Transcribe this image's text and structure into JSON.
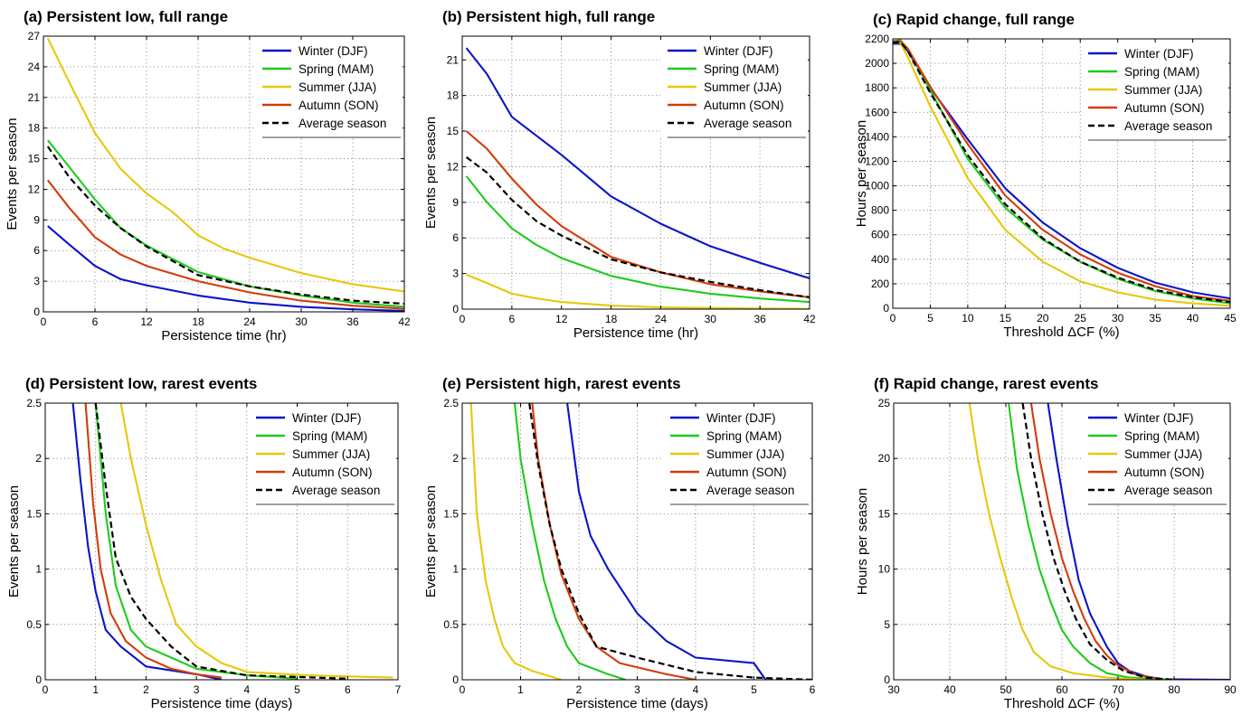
{
  "figure": {
    "colors": {
      "Winter (DJF)": "#0a14c8",
      "Spring (MAM)": "#1ecb1e",
      "Summer (JJA)": "#e6c80a",
      "Autumn (SON)": "#d23c0a",
      "Average season": "#000000"
    }
  },
  "chart_data": [
    {
      "type": "line",
      "title": "(a) Persistent low, full range",
      "xlabel": "Persistence time (hr)",
      "ylabel": "Events per season",
      "xlim": [
        0,
        42
      ],
      "ylim": [
        0,
        27
      ],
      "xticks": [
        0,
        6,
        12,
        18,
        24,
        30,
        36,
        42
      ],
      "yticks": [
        0,
        3,
        6,
        9,
        12,
        15,
        18,
        21,
        24,
        27
      ],
      "grid": true,
      "legend": "top-right",
      "series": [
        {
          "name": "Winter (DJF)",
          "x": [
            0.5,
            3,
            6,
            9,
            12,
            18,
            24,
            30,
            36,
            42
          ],
          "y": [
            8.4,
            6.6,
            4.5,
            3.2,
            2.6,
            1.6,
            0.9,
            0.5,
            0.25,
            0.1
          ]
        },
        {
          "name": "Spring (MAM)",
          "x": [
            0.5,
            3,
            6,
            9,
            12,
            15,
            18,
            24,
            30,
            36,
            42
          ],
          "y": [
            16.8,
            14.2,
            11.0,
            8.2,
            6.5,
            5.2,
            3.9,
            2.5,
            1.6,
            0.9,
            0.5
          ]
        },
        {
          "name": "Summer (JJA)",
          "x": [
            0.5,
            3,
            6,
            9,
            12,
            15,
            18,
            21,
            24,
            30,
            36,
            42
          ],
          "y": [
            26.8,
            22.5,
            17.5,
            14.0,
            11.6,
            9.8,
            7.5,
            6.2,
            5.3,
            3.8,
            2.7,
            2.0
          ]
        },
        {
          "name": "Autumn (SON)",
          "x": [
            0.5,
            3,
            6,
            9,
            12,
            18,
            24,
            30,
            36,
            42
          ],
          "y": [
            12.9,
            10.2,
            7.3,
            5.6,
            4.5,
            3.0,
            1.9,
            1.1,
            0.6,
            0.3
          ]
        },
        {
          "name": "Average season",
          "x": [
            0.5,
            3,
            6,
            9,
            12,
            18,
            24,
            30,
            36,
            42
          ],
          "y": [
            16.2,
            13.2,
            10.4,
            8.2,
            6.4,
            3.6,
            2.5,
            1.7,
            1.1,
            0.8
          ]
        }
      ]
    },
    {
      "type": "line",
      "title": "(b) Persistent high, full range",
      "xlabel": "Persistence time (hr)",
      "ylabel": "Events per season",
      "xlim": [
        0,
        42
      ],
      "ylim": [
        0,
        23
      ],
      "xticks": [
        0,
        6,
        12,
        18,
        24,
        30,
        36,
        42
      ],
      "yticks": [
        0,
        3,
        6,
        9,
        12,
        15,
        18,
        21
      ],
      "grid": true,
      "legend": "top-right",
      "series": [
        {
          "name": "Winter (DJF)",
          "x": [
            0.5,
            3,
            6,
            9,
            12,
            18,
            24,
            30,
            36,
            42
          ],
          "y": [
            22.0,
            19.8,
            16.2,
            14.6,
            13.0,
            9.5,
            7.2,
            5.3,
            3.9,
            2.6
          ]
        },
        {
          "name": "Spring (MAM)",
          "x": [
            0.5,
            3,
            6,
            9,
            12,
            18,
            24,
            30,
            36,
            42
          ],
          "y": [
            11.2,
            9.0,
            6.8,
            5.4,
            4.3,
            2.8,
            1.9,
            1.3,
            0.9,
            0.6
          ]
        },
        {
          "name": "Summer (JJA)",
          "x": [
            0.5,
            3,
            6,
            9,
            12,
            18,
            24,
            30,
            36,
            42
          ],
          "y": [
            2.9,
            2.2,
            1.3,
            0.9,
            0.6,
            0.3,
            0.15,
            0.1,
            0.05,
            0.02
          ]
        },
        {
          "name": "Autumn (SON)",
          "x": [
            0.5,
            3,
            6,
            9,
            12,
            18,
            24,
            30,
            36,
            42
          ],
          "y": [
            15.0,
            13.5,
            11.0,
            8.8,
            7.0,
            4.4,
            3.1,
            2.1,
            1.5,
            1.0
          ]
        },
        {
          "name": "Average season",
          "x": [
            0.5,
            3,
            6,
            9,
            12,
            18,
            24,
            30,
            36,
            42
          ],
          "y": [
            12.8,
            11.5,
            9.2,
            7.4,
            6.2,
            4.2,
            3.1,
            2.3,
            1.6,
            1.0
          ]
        }
      ]
    },
    {
      "type": "line",
      "title": "(c) Rapid change, full range",
      "xlabel": "Threshold ΔCF (%)",
      "ylabel": "Hours per season",
      "xlim": [
        0,
        45
      ],
      "ylim": [
        0,
        2200
      ],
      "xticks": [
        0,
        5,
        10,
        15,
        20,
        25,
        30,
        35,
        40,
        45
      ],
      "yticks": [
        0,
        200,
        400,
        600,
        800,
        1000,
        1200,
        1400,
        1600,
        1800,
        2000,
        2200
      ],
      "grid": true,
      "legend": "top-right",
      "series": [
        {
          "name": "Winter (DJF)",
          "x": [
            0,
            1,
            2,
            5,
            10,
            15,
            20,
            25,
            30,
            35,
            40,
            45
          ],
          "y": [
            2160,
            2160,
            2100,
            1800,
            1380,
            980,
            700,
            490,
            330,
            210,
            130,
            80
          ]
        },
        {
          "name": "Spring (MAM)",
          "x": [
            0,
            1,
            2,
            5,
            10,
            15,
            20,
            25,
            30,
            35,
            40,
            45
          ],
          "y": [
            2180,
            2190,
            2120,
            1780,
            1220,
            820,
            560,
            380,
            240,
            140,
            80,
            40
          ]
        },
        {
          "name": "Summer (JJA)",
          "x": [
            0,
            1,
            2,
            5,
            10,
            15,
            20,
            25,
            30,
            35,
            40,
            45
          ],
          "y": [
            2170,
            2170,
            2050,
            1650,
            1060,
            640,
            380,
            220,
            130,
            70,
            40,
            20
          ]
        },
        {
          "name": "Autumn (SON)",
          "x": [
            0,
            1,
            2,
            5,
            10,
            15,
            20,
            25,
            30,
            35,
            40,
            45
          ],
          "y": [
            2180,
            2180,
            2120,
            1810,
            1340,
            920,
            640,
            440,
            290,
            180,
            100,
            60
          ]
        },
        {
          "name": "Average season",
          "x": [
            0,
            1,
            2,
            5,
            10,
            15,
            20,
            25,
            30,
            35,
            40,
            45
          ],
          "y": [
            2170,
            2175,
            2100,
            1760,
            1250,
            850,
            570,
            380,
            250,
            150,
            90,
            50
          ]
        }
      ]
    },
    {
      "type": "line",
      "title": "(d) Persistent low, rarest events",
      "xlabel": "Persistence time (days)",
      "ylabel": "Events per season",
      "xlim": [
        0,
        7
      ],
      "ylim": [
        0,
        2.5
      ],
      "xticks": [
        0,
        1,
        2,
        3,
        4,
        5,
        6,
        7
      ],
      "yticks": [
        0,
        0.5,
        1,
        1.5,
        2,
        2.5
      ],
      "grid": true,
      "legend": "top-right",
      "series": [
        {
          "name": "Winter (DJF)",
          "x": [
            0.55,
            0.7,
            0.85,
            1.0,
            1.2,
            1.5,
            2.0,
            3.0,
            3.5
          ],
          "y": [
            2.5,
            1.8,
            1.2,
            0.8,
            0.45,
            0.3,
            0.12,
            0.05,
            0.0
          ]
        },
        {
          "name": "Spring (MAM)",
          "x": [
            1.0,
            1.2,
            1.4,
            1.7,
            2.0,
            2.5,
            3.0,
            4.0,
            5.0
          ],
          "y": [
            2.5,
            1.5,
            0.85,
            0.45,
            0.3,
            0.2,
            0.1,
            0.04,
            0.01
          ]
        },
        {
          "name": "Summer (JJA)",
          "x": [
            1.5,
            1.7,
            2.0,
            2.3,
            2.6,
            3.0,
            3.5,
            4.0,
            5.2,
            6.9
          ],
          "y": [
            2.5,
            2.0,
            1.4,
            0.9,
            0.5,
            0.3,
            0.15,
            0.07,
            0.04,
            0.02
          ]
        },
        {
          "name": "Autumn (SON)",
          "x": [
            0.8,
            0.95,
            1.1,
            1.3,
            1.6,
            2.0,
            2.5,
            3.0,
            3.5
          ],
          "y": [
            2.5,
            1.6,
            1.0,
            0.6,
            0.35,
            0.2,
            0.1,
            0.05,
            0.02
          ]
        },
        {
          "name": "Average season",
          "x": [
            1.0,
            1.2,
            1.4,
            1.7,
            2.0,
            2.5,
            3.0,
            4.0,
            6.0
          ],
          "y": [
            2.5,
            1.75,
            1.1,
            0.75,
            0.55,
            0.3,
            0.12,
            0.04,
            0.01
          ]
        }
      ]
    },
    {
      "type": "line",
      "title": "(e) Persistent high, rarest events",
      "xlabel": "Persistence time (days)",
      "ylabel": "Events per season",
      "xlim": [
        0,
        6
      ],
      "ylim": [
        0,
        2.5
      ],
      "xticks": [
        0,
        1,
        2,
        3,
        4,
        5,
        6
      ],
      "yticks": [
        0,
        0.5,
        1,
        1.5,
        2,
        2.5
      ],
      "grid": true,
      "legend": "top-right",
      "series": [
        {
          "name": "Winter (DJF)",
          "x": [
            1.8,
            2.0,
            2.2,
            2.5,
            3.0,
            3.5,
            4.0,
            5.0,
            5.2
          ],
          "y": [
            2.5,
            1.7,
            1.3,
            1.0,
            0.6,
            0.35,
            0.2,
            0.15,
            0.0
          ]
        },
        {
          "name": "Spring (MAM)",
          "x": [
            0.9,
            1.0,
            1.2,
            1.4,
            1.6,
            1.8,
            2.0,
            2.5,
            2.8
          ],
          "y": [
            2.5,
            2.0,
            1.4,
            0.9,
            0.55,
            0.3,
            0.15,
            0.05,
            0.0
          ]
        },
        {
          "name": "Summer (JJA)",
          "x": [
            0.15,
            0.25,
            0.4,
            0.55,
            0.7,
            0.9,
            1.2,
            1.7
          ],
          "y": [
            2.5,
            1.5,
            0.9,
            0.55,
            0.3,
            0.15,
            0.08,
            0.0
          ]
        },
        {
          "name": "Autumn (SON)",
          "x": [
            1.2,
            1.3,
            1.5,
            1.7,
            2.0,
            2.3,
            2.7,
            3.5,
            4.0
          ],
          "y": [
            2.5,
            2.0,
            1.4,
            0.95,
            0.55,
            0.3,
            0.15,
            0.05,
            0.0
          ]
        },
        {
          "name": "Average season",
          "x": [
            1.15,
            1.3,
            1.5,
            1.7,
            2.0,
            2.3,
            3.0,
            4.0,
            5.0,
            6.0
          ],
          "y": [
            2.5,
            1.95,
            1.4,
            1.0,
            0.6,
            0.3,
            0.2,
            0.07,
            0.02,
            0.0
          ]
        }
      ]
    },
    {
      "type": "line",
      "title": "(f) Rapid change, rarest events",
      "xlabel": "Threshold ΔCF (%)",
      "ylabel": "Hours per season",
      "xlim": [
        30,
        90
      ],
      "ylim": [
        0,
        25
      ],
      "xticks": [
        30,
        40,
        50,
        60,
        70,
        80,
        90
      ],
      "yticks": [
        0,
        5,
        10,
        15,
        20,
        25
      ],
      "grid": true,
      "legend": "top-right",
      "series": [
        {
          "name": "Winter (DJF)",
          "x": [
            57.5,
            59,
            61,
            63,
            65,
            68,
            70,
            72,
            75,
            78,
            90
          ],
          "y": [
            25,
            20,
            14,
            9,
            6,
            3,
            1.5,
            0.8,
            0.3,
            0.05,
            0.0
          ]
        },
        {
          "name": "Spring (MAM)",
          "x": [
            50.5,
            52,
            54,
            56,
            58,
            60,
            62,
            65,
            68,
            72,
            80
          ],
          "y": [
            25,
            19,
            14,
            10,
            7,
            4.5,
            3,
            1.5,
            0.6,
            0.2,
            0.0
          ]
        },
        {
          "name": "Summer (JJA)",
          "x": [
            43.5,
            45,
            47,
            49,
            51,
            53,
            55,
            58,
            62,
            68,
            75
          ],
          "y": [
            25,
            20,
            15,
            11,
            7.5,
            4.5,
            2.5,
            1.2,
            0.6,
            0.2,
            0.0
          ]
        },
        {
          "name": "Autumn (SON)",
          "x": [
            54.5,
            56,
            58,
            60,
            62,
            64,
            66,
            68,
            70,
            73,
            78
          ],
          "y": [
            25,
            20,
            15,
            11,
            8,
            5.5,
            3.5,
            2.2,
            1.3,
            0.5,
            0.0
          ]
        },
        {
          "name": "Average season",
          "x": [
            53,
            54.5,
            56.5,
            58.5,
            60.5,
            62.5,
            65,
            68,
            71,
            75,
            80
          ],
          "y": [
            25,
            20,
            15,
            11,
            8,
            5.5,
            3.2,
            1.8,
            0.8,
            0.2,
            0.0
          ]
        }
      ]
    }
  ]
}
